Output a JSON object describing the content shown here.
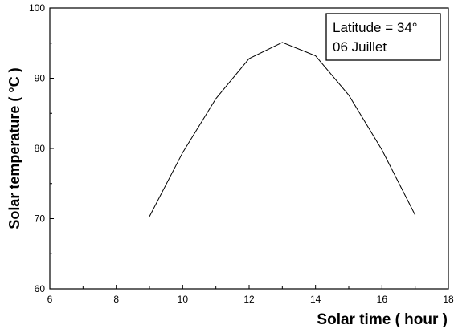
{
  "chart_data": {
    "type": "line",
    "xlabel": "Solar time ( hour )",
    "ylabel": "Solar temperature ( °C )",
    "xlim": [
      6,
      18
    ],
    "ylim": [
      60,
      100
    ],
    "x_ticks": [
      6,
      8,
      10,
      12,
      14,
      16,
      18
    ],
    "y_ticks": [
      60,
      70,
      80,
      90,
      100
    ],
    "grid": false,
    "legend_position": "top-right",
    "annotation": [
      "Latitude = 34°",
      "06 Juillet"
    ],
    "series": [
      {
        "x": [
          9,
          10,
          11,
          12,
          13,
          14,
          15,
          16,
          17
        ],
        "y": [
          70.3,
          79.4,
          87.1,
          92.8,
          95.1,
          93.2,
          87.6,
          79.8,
          70.5
        ],
        "color": "#000000"
      }
    ]
  }
}
